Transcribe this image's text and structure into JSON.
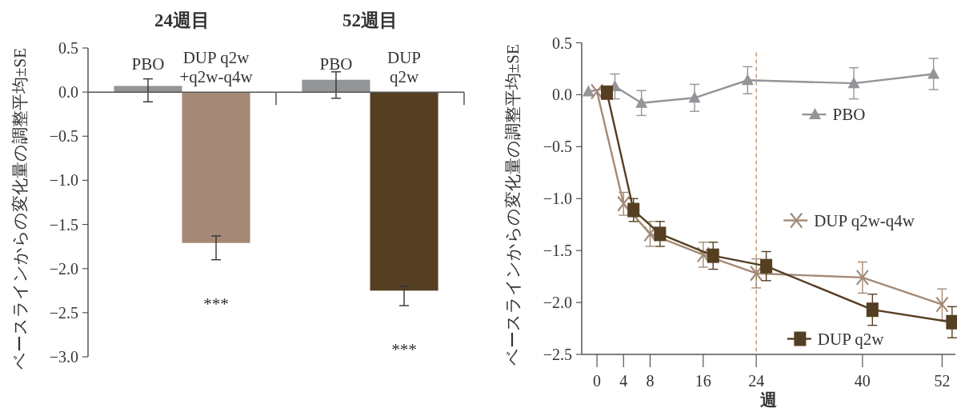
{
  "chart_data": [
    {
      "type": "bar",
      "ylabel": "ベースラインからの変化量の調整平均±SE",
      "categories": [
        "PBO",
        "DUP q2w\n+q2w-q4w",
        "PBO",
        "DUP\nq2w"
      ],
      "values": [
        0.07,
        -1.71,
        0.14,
        -2.25
      ],
      "colors": [
        "#939598",
        "#a48a76",
        "#939598",
        "#553f22"
      ],
      "errors": [
        [
          -0.11,
          0.15
        ],
        [
          -1.9,
          -1.63
        ],
        [
          -0.07,
          0.23
        ],
        [
          -2.42,
          -2.2
        ]
      ],
      "ylim": [
        -3,
        0.5
      ],
      "yticks": [
        {
          "value": 0.5,
          "label": "0.5"
        },
        {
          "value": 0,
          "label": "0.0"
        },
        {
          "value": -0.5,
          "label": "−0.5"
        },
        {
          "value": -1,
          "label": "−1.0"
        },
        {
          "value": -1.5,
          "label": "−1.5"
        },
        {
          "value": -2,
          "label": "−2.0"
        },
        {
          "value": -2.5,
          "label": "−2.5"
        },
        {
          "value": -3,
          "label": "−3.0"
        }
      ],
      "annotations": [
        "24週目",
        "52週目",
        "***",
        "***"
      ]
    },
    {
      "type": "line",
      "ylabel": "ベースラインからの変化量の調整平均±SE",
      "xlabel": "週",
      "xlim": [
        -2.3,
        54
      ],
      "xticks": [
        0,
        4,
        8,
        16,
        24,
        40,
        52
      ],
      "ylim": [
        -2.5,
        0.5
      ],
      "yticks": [
        {
          "value": 0.5,
          "label": "0.5"
        },
        {
          "value": 0,
          "label": "0.0"
        },
        {
          "value": -0.5,
          "label": "−0.5"
        },
        {
          "value": -1,
          "label": "−1.0"
        },
        {
          "value": -1.5,
          "label": "−1.5"
        },
        {
          "value": -2,
          "label": "−2.0"
        },
        {
          "value": -2.5,
          "label": "−2.5"
        }
      ],
      "legend": "right",
      "ref_lines": [
        {
          "axis": "x",
          "value": 24,
          "color": "#c0906a",
          "line_style": "dashed"
        }
      ],
      "series": [
        {
          "name": "PBO",
          "color": "#939598",
          "marker": "triangle",
          "x": [
            -1.3,
            2.7,
            6.7,
            14.7,
            22.7,
            38.7,
            50.7
          ],
          "values": [
            0.03,
            0.08,
            -0.08,
            -0.03,
            0.14,
            0.11,
            0.2
          ],
          "errors": [
            null,
            0.12,
            0.12,
            0.13,
            0.13,
            0.15,
            0.15
          ]
        },
        {
          "name": "DUP q2w-q4w",
          "color": "#a48a76",
          "marker": "cross",
          "x": [
            0,
            4,
            8,
            16,
            24,
            40,
            52
          ],
          "values": [
            0.03,
            -1.05,
            -1.34,
            -1.54,
            -1.72,
            -1.76,
            -2.02
          ],
          "errors": [
            null,
            0.11,
            0.12,
            0.12,
            0.14,
            0.15,
            0.15
          ]
        },
        {
          "name": "DUP q2w",
          "color": "#553f22",
          "marker": "square",
          "x": [
            1.5,
            5.5,
            9.5,
            17.5,
            25.5,
            41.5,
            53.5
          ],
          "values": [
            0.02,
            -1.11,
            -1.34,
            -1.55,
            -1.65,
            -2.07,
            -2.19
          ],
          "errors": [
            null,
            0.11,
            0.12,
            0.13,
            0.14,
            0.15,
            0.15
          ]
        }
      ]
    }
  ]
}
